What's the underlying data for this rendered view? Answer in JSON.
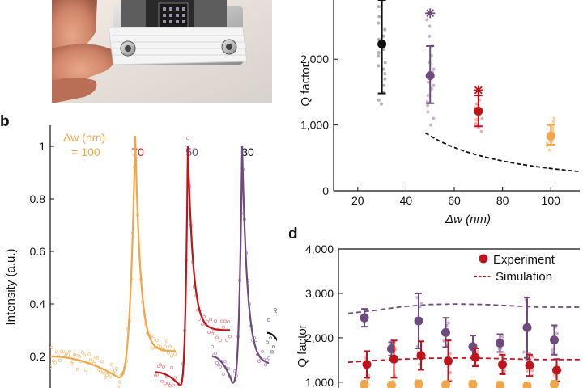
{
  "figure": {
    "panel_labels": {
      "b": "b",
      "d": "d"
    }
  },
  "chart_data": [
    {
      "panel": "b",
      "type": "line",
      "ylabel": "Intensity (a.u.)",
      "yticks": [
        "0.2",
        "0.4",
        "0.6",
        "0.8",
        "1"
      ],
      "ytick_values": [
        0.2,
        0.4,
        0.6,
        0.8,
        1.0
      ],
      "ylim": [
        0.08,
        1.08
      ],
      "legend_title_line1": "Δw (nm)",
      "legend_title_line2": "= 100",
      "series": [
        {
          "name": "Δw = 100",
          "label": "= 100",
          "color": "#f2a64a",
          "light_color": "#f7c98a",
          "x_start": 0,
          "peak_x": 105,
          "x_end": 155,
          "dip_x": 84,
          "baseline_start": 0.2,
          "dip": 0.12,
          "peak": 1.04,
          "end_level": 0.22
        },
        {
          "name": "Δw = 70",
          "label": "70",
          "color": "#c0141c",
          "light_color": "#ee9a9a",
          "x_start": 130,
          "peak_x": 170,
          "x_end": 222,
          "dip_x": 160,
          "baseline_start": 0.14,
          "dip": 0.09,
          "peak": 1.0,
          "end_level": 0.3
        },
        {
          "name": "Δw = 50",
          "label": "50",
          "color": "#6e4a7e",
          "light_color": "#b9a0c4",
          "x_start": 200,
          "peak_x": 237,
          "x_end": 270,
          "dip_x": 225,
          "baseline_start": 0.2,
          "dip": 0.1,
          "peak": 1.0,
          "end_level": 0.17
        },
        {
          "name": "Δw = 30",
          "label": "30",
          "color": "#111111",
          "light_color": "#8a8a8a",
          "x_start": 268,
          "peak_x": 307,
          "x_end": 338,
          "dip_x": 300,
          "baseline_start": 0.29,
          "dip": 0.1,
          "peak": 0.95,
          "end_level": 0.33
        }
      ]
    },
    {
      "panel": "c",
      "type": "scatter",
      "xlabel": "Δw (nm)",
      "ylabel": "Q factor",
      "xlim": [
        10,
        112
      ],
      "ylim": [
        0,
        2900
      ],
      "xticks": [
        20,
        40,
        60,
        80,
        100
      ],
      "xtick_labels": [
        "20",
        "40",
        "60",
        "80",
        "100"
      ],
      "yticks": [
        0,
        1000,
        2000
      ],
      "ytick_labels": [
        "0",
        "1,000",
        "2,000"
      ],
      "series": [
        {
          "name": "30 nm",
          "x": 30,
          "mean": 2230,
          "err_low": 1480,
          "err_high": 2900,
          "color": "#111111",
          "light_color": "#9a9a9a",
          "points": [
            1320,
            1380,
            1500,
            1600,
            1700,
            1780,
            1850,
            1950,
            2050,
            2150,
            2250,
            2350,
            2450,
            2550,
            2650,
            2800,
            2300,
            2100,
            1900
          ]
        },
        {
          "name": "50 nm",
          "x": 50,
          "mean": 1750,
          "err_low": 1330,
          "err_high": 2200,
          "color": "#6e4a7e",
          "light_color": "#b9a0c4",
          "points": [
            1000,
            1100,
            1200,
            1350,
            1450,
            1550,
            1650,
            1750,
            1850,
            1950,
            2050,
            2200,
            2350,
            2500,
            2600,
            2700,
            1800,
            1600,
            1300
          ]
        },
        {
          "name": "70 nm",
          "x": 70,
          "mean": 1210,
          "err_low": 980,
          "err_high": 1450,
          "color": "#c0141c",
          "light_color": "#ee9a9a",
          "points": [
            900,
            960,
            1020,
            1080,
            1150,
            1200,
            1260,
            1320,
            1380,
            1450,
            1520,
            1100,
            1250,
            1000
          ]
        },
        {
          "name": "100 nm",
          "x": 100,
          "mean": 830,
          "err_low": 700,
          "err_high": 1000,
          "color": "#f2a64a",
          "light_color": "#f7c98a",
          "points": [
            620,
            680,
            720,
            760,
            800,
            840,
            880,
            920,
            960,
            1000,
            1050,
            1100,
            850,
            750,
            900
          ]
        }
      ],
      "stars": [
        {
          "x": 50,
          "y": 2700,
          "color": "#6e4a7e"
        },
        {
          "x": 70,
          "y": 1530,
          "color": "#c0141c"
        }
      ],
      "fit_curve": {
        "style": "dashed",
        "color": "#111111",
        "k": 135000,
        "exponent": 1.3,
        "x_from": 48,
        "x_to": 112
      }
    },
    {
      "panel": "d",
      "type": "scatter",
      "ylabel": "Q factor",
      "ylim": [
        870,
        4000
      ],
      "yticks": [
        1000,
        2000,
        3000,
        4000
      ],
      "ytick_labels": [
        "1,000",
        "2,000",
        "3,000",
        "4,000"
      ],
      "legend": {
        "experiment": "Experiment",
        "simulation": "Simulation"
      },
      "series": [
        {
          "name": "upper",
          "color": "#6e4a7e",
          "light_color": "#b9a0c4",
          "means": [
            2450,
            1750,
            2380,
            2120,
            1800,
            1880,
            2230,
            1950
          ],
          "errs": [
            200,
            150,
            620,
            330,
            250,
            200,
            680,
            330
          ],
          "sim": [
            2550,
            2620,
            2700,
            2750,
            2760,
            2750,
            2720,
            2690
          ]
        },
        {
          "name": "middle",
          "color": "#c0141c",
          "light_color": "#ee9a9a",
          "means": [
            1400,
            1520,
            1600,
            1480,
            1560,
            1400,
            1380,
            1270
          ],
          "errs": [
            300,
            420,
            320,
            460,
            200,
            220,
            240,
            250
          ],
          "sim": [
            1450,
            1490,
            1520,
            1540,
            1545,
            1540,
            1525,
            1510
          ]
        },
        {
          "name": "lower",
          "color": "#f2a64a",
          "light_color": "#f7c98a",
          "means": [
            950,
            930,
            960,
            940,
            950,
            930,
            920,
            950
          ],
          "errs": [
            80,
            80,
            80,
            80,
            80,
            80,
            80,
            80
          ],
          "sim": []
        }
      ]
    }
  ]
}
